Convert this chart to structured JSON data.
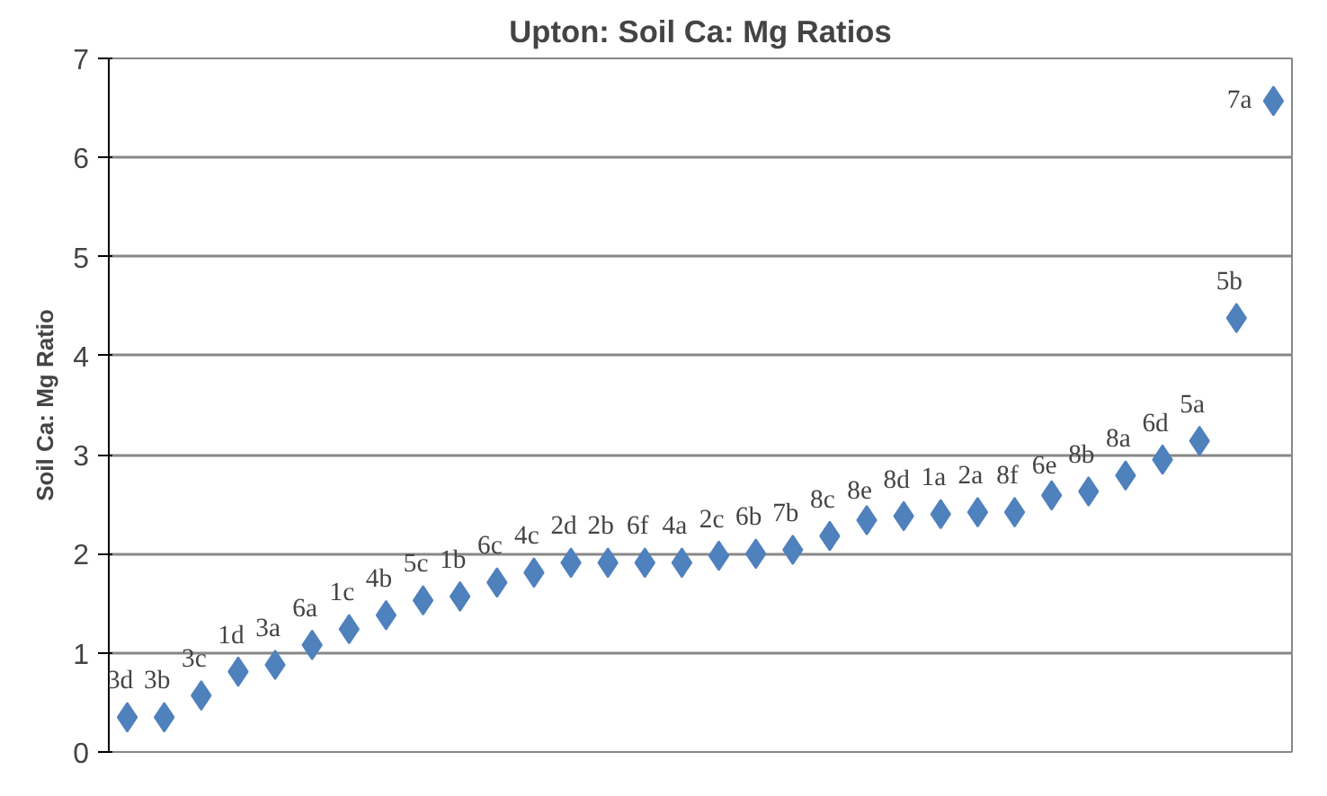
{
  "chart_data": {
    "type": "scatter",
    "title": "Upton: Soil Ca: Mg Ratios",
    "ylabel": "Soil Ca: Mg Ratio",
    "categories": [
      null,
      null,
      null,
      null,
      null,
      null,
      null,
      null,
      null,
      null,
      null,
      null,
      null,
      null,
      null,
      null,
      null,
      null,
      null,
      null,
      null,
      null,
      null,
      null,
      null,
      null,
      null,
      null,
      null,
      null,
      null,
      null
    ],
    "values": [
      0.35,
      0.35,
      0.57,
      0.81,
      0.88,
      1.08,
      1.24,
      1.38,
      1.53,
      1.57,
      1.71,
      1.81,
      1.91,
      1.91,
      1.91,
      1.91,
      1.98,
      2.0,
      2.04,
      2.18,
      2.34,
      2.38,
      2.4,
      2.42,
      2.42,
      2.59,
      2.63,
      2.79,
      2.95,
      3.14,
      4.38,
      6.57
    ],
    "annotations": [
      "3d",
      "3b",
      "3c",
      "1d",
      "3a",
      "6a",
      "1c",
      "4b",
      "5c",
      "1b",
      "6c",
      "4c",
      "2d",
      "2b",
      "6f",
      "4a",
      "2c",
      "6b",
      "7b",
      "8c",
      "8e",
      "8d",
      "1a",
      "2a",
      "8f",
      "6e",
      "8b",
      "8a",
      "6d",
      "5a",
      "5b",
      "7a"
    ],
    "color": "#4f81bd",
    "marker": "diamond",
    "ylim": [
      0,
      7
    ],
    "yticks": [
      0,
      1,
      2,
      3,
      4,
      5,
      6,
      7
    ],
    "grid": "y",
    "tick_labels": "y"
  }
}
